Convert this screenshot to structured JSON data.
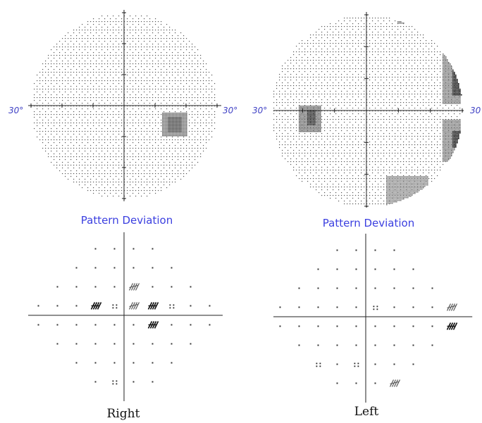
{
  "right_eye": {
    "grayscale_left_label": "30°",
    "grayscale_right_label": "30°",
    "pattern_title": "Pattern Deviation",
    "eye_label": "Right",
    "defects": [
      {
        "row": -1,
        "col": 1,
        "level": "p2"
      },
      {
        "row": -1,
        "col": 2,
        "level": "p1"
      },
      {
        "row": -1,
        "col": -2,
        "level": "p1"
      },
      {
        "row": -1,
        "col": -1,
        "level": "p5"
      },
      {
        "row": 1,
        "col": 2,
        "level": "p1"
      },
      {
        "row": 4,
        "col": -1,
        "level": "p5"
      },
      {
        "row": -2,
        "col": 1,
        "level": "p2"
      },
      {
        "row": -1,
        "col": 3,
        "level": "p5"
      }
    ]
  },
  "left_eye": {
    "grayscale_left_label": "30°",
    "grayscale_right_label": "30",
    "pattern_title": "Pattern Deviation",
    "eye_label": "Left",
    "defects": [
      {
        "row": -2,
        "col": 5,
        "level": "p05"
      },
      {
        "row": -1,
        "col": 5,
        "level": "p2"
      },
      {
        "row": 1,
        "col": 5,
        "level": "p1"
      },
      {
        "row": 2,
        "col": 5,
        "level": "p05"
      },
      {
        "row": -1,
        "col": 1,
        "level": "p5"
      },
      {
        "row": 3,
        "col": -3,
        "level": "p5"
      },
      {
        "row": 3,
        "col": -1,
        "level": "p5"
      },
      {
        "row": 4,
        "col": 2,
        "level": "p2"
      },
      {
        "row": 5,
        "col": 1,
        "level": "p2"
      }
    ]
  }
}
